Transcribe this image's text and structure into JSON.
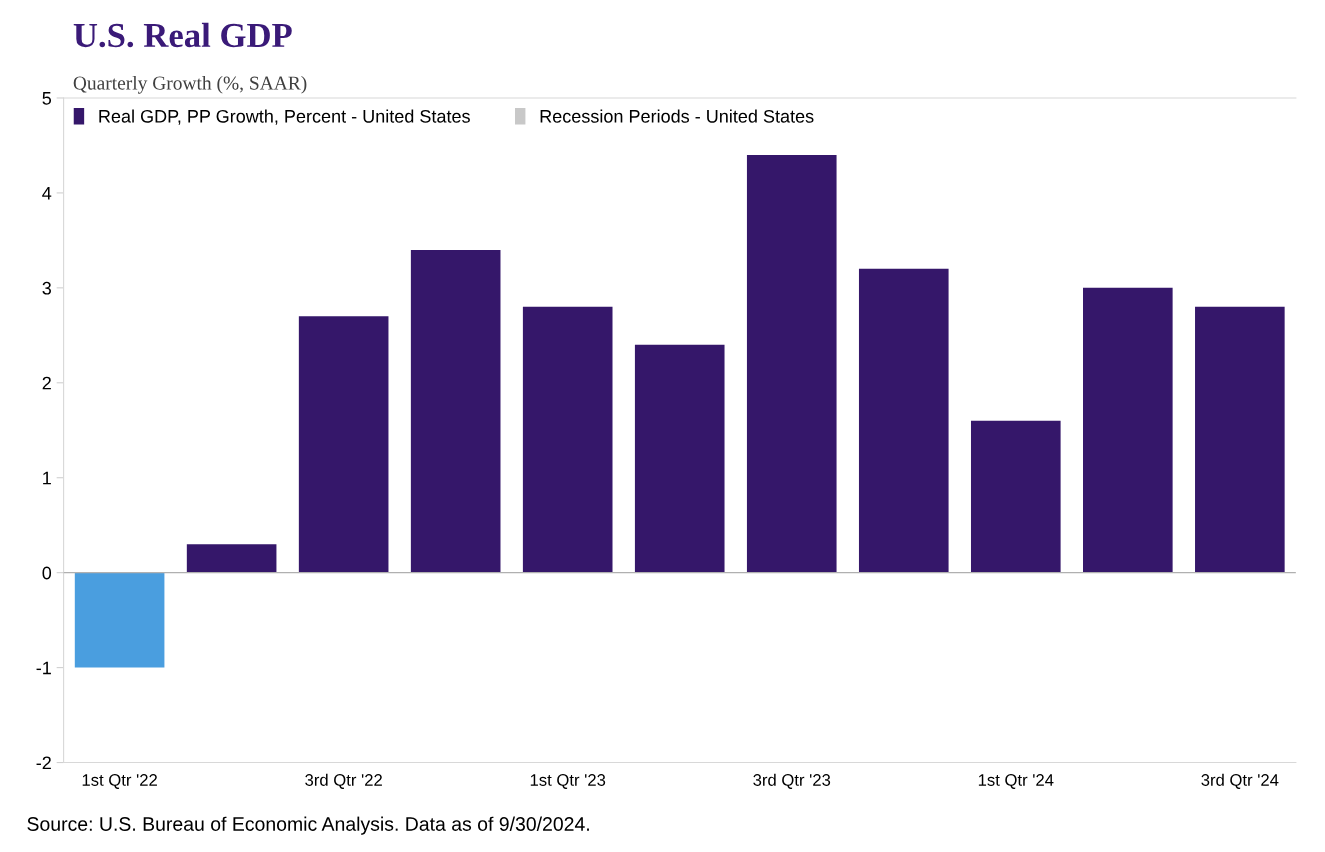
{
  "chart_data": {
    "type": "bar",
    "title": "U.S. Real GDP",
    "subtitle": "Quarterly Growth (%, SAAR)",
    "categories": [
      "1st Qtr '22",
      null,
      "3rd Qtr '22",
      null,
      "1st Qtr '23",
      null,
      "3rd Qtr '23",
      null,
      "1st Qtr '24",
      null,
      "3rd Qtr '24"
    ],
    "series": [
      {
        "name": "Real GDP, PP Growth, Percent - United States",
        "color": "#35176a",
        "colors": [
          "#4a9edf",
          "#35176a",
          "#35176a",
          "#35176a",
          "#35176a",
          "#35176a",
          "#35176a",
          "#35176a",
          "#35176a",
          "#35176a",
          "#35176a"
        ],
        "values": [
          -1.0,
          0.3,
          2.7,
          3.4,
          2.8,
          2.4,
          4.4,
          3.2,
          1.6,
          3.0,
          2.8
        ]
      },
      {
        "name": "Recession Periods - United States",
        "color": "#c8c8c8",
        "values": [
          null,
          null,
          null,
          null,
          null,
          null,
          null,
          null,
          null,
          null,
          null
        ]
      }
    ],
    "ylim": [
      -2,
      5
    ],
    "yticks": [
      -2,
      -1,
      0,
      1,
      2,
      3,
      4,
      5
    ],
    "grid": false,
    "legend": "top left",
    "ref_lines": [
      {
        "axis": "y",
        "value": 0,
        "color": "#b0b0b0"
      }
    ],
    "annotations": [
      "Source: U.S. Bureau of Economic Analysis. Data as of 9/30/2024."
    ]
  }
}
